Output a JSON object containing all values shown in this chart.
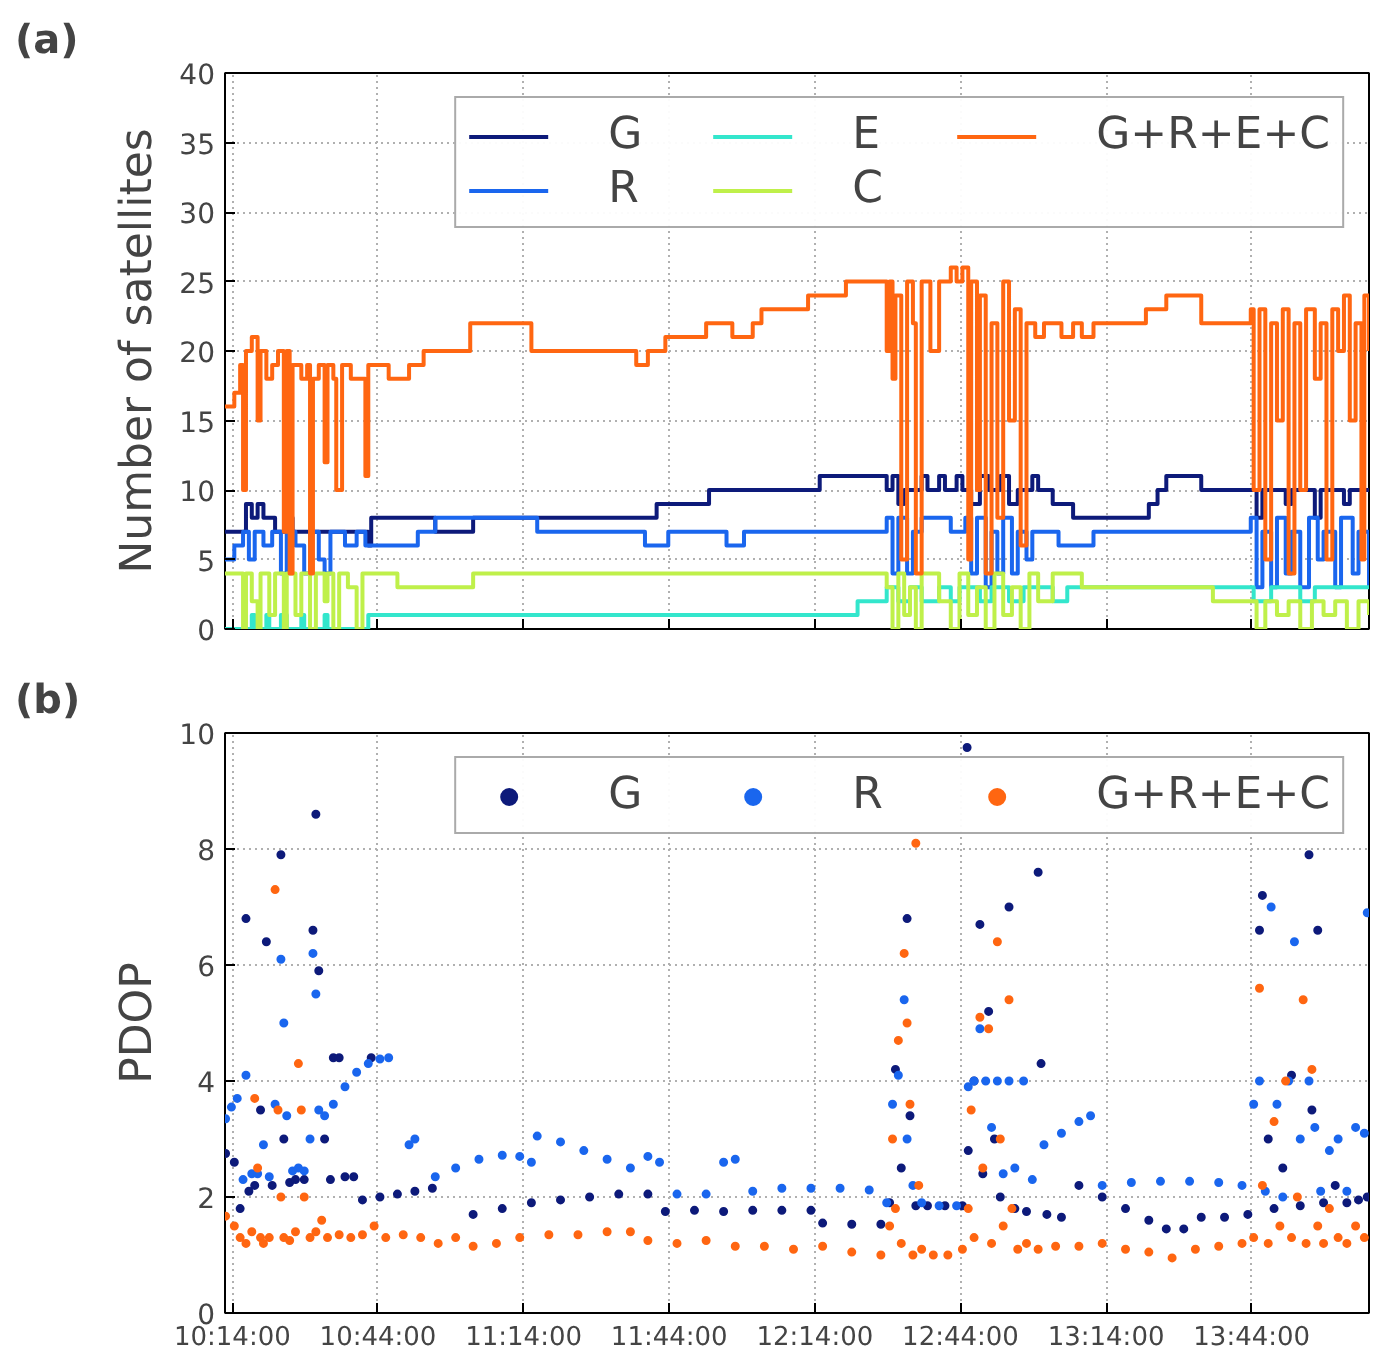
{
  "chart_data": [
    {
      "type": "step",
      "title": "(a)",
      "ylabel": "Number of satellites",
      "xlim": [
        10.208,
        14.136
      ],
      "ylim": [
        0,
        40
      ],
      "yticks": [
        0,
        5,
        10,
        15,
        20,
        25,
        30,
        35,
        40
      ],
      "xticks": [
        10.23333,
        10.73333,
        11.23333,
        11.73333,
        12.23333,
        12.73333,
        13.23333,
        13.73333
      ],
      "tick_labels": "y",
      "grid": true,
      "legend": "top right",
      "line_style": "solid",
      "series": [
        {
          "name": "G",
          "color": "#0d1a7a",
          "x": [
            10.208,
            10.28,
            10.3,
            10.32,
            10.34,
            10.38,
            10.42,
            10.44,
            10.7,
            10.71,
            10.93,
            11.06,
            11.69,
            11.87,
            12.25,
            12.48,
            12.5,
            12.52,
            12.54,
            12.6,
            12.62,
            12.66,
            12.68,
            12.72,
            12.74,
            12.77,
            12.8,
            12.83,
            12.87,
            12.9,
            12.93,
            12.98,
            13.0,
            13.05,
            13.12,
            13.38,
            13.41,
            13.44,
            13.56,
            13.73,
            13.75,
            13.77,
            13.85,
            13.87,
            13.95,
            13.97,
            14.05,
            14.07,
            14.136
          ],
          "values": [
            7,
            9,
            8,
            9,
            8,
            7,
            8,
            7,
            6,
            8,
            7,
            8,
            9,
            10,
            11,
            10,
            11,
            9,
            10,
            11,
            10,
            11,
            10,
            11,
            10,
            9,
            11,
            10,
            11,
            9,
            10,
            11,
            10,
            9,
            8,
            9,
            10,
            11,
            10,
            10,
            8,
            10,
            9,
            10,
            8,
            10,
            9,
            10,
            10
          ]
        },
        {
          "name": "R",
          "color": "#1a66ee",
          "x": [
            10.208,
            10.24,
            10.27,
            10.29,
            10.31,
            10.34,
            10.37,
            10.4,
            10.42,
            10.45,
            10.48,
            10.5,
            10.53,
            10.55,
            10.57,
            10.62,
            10.66,
            10.69,
            10.87,
            10.93,
            11.28,
            11.65,
            11.73,
            11.93,
            11.99,
            12.48,
            12.5,
            12.52,
            12.55,
            12.57,
            12.6,
            12.7,
            12.75,
            12.77,
            12.79,
            12.82,
            12.84,
            12.86,
            12.88,
            12.91,
            12.93,
            12.96,
            12.98,
            13.07,
            13.19,
            13.73,
            13.75,
            13.77,
            13.8,
            13.82,
            13.85,
            13.87,
            13.9,
            13.93,
            13.96,
            13.98,
            14.02,
            14.04,
            14.08,
            14.1,
            14.136
          ],
          "values": [
            5,
            6,
            7,
            5,
            7,
            6,
            7,
            4,
            7,
            6,
            4,
            7,
            5,
            4,
            7,
            6,
            7,
            6,
            7,
            8,
            7,
            6,
            7,
            6,
            7,
            8,
            4,
            8,
            4,
            7,
            8,
            7,
            8,
            4,
            8,
            3,
            7,
            4,
            8,
            4,
            7,
            5,
            7,
            6,
            7,
            8,
            3,
            7,
            3,
            8,
            4,
            7,
            3,
            8,
            5,
            7,
            3,
            8,
            4,
            7,
            3
          ]
        },
        {
          "name": "E",
          "color": "#33e6cc",
          "x": [
            10.208,
            10.3,
            10.31,
            10.35,
            10.36,
            10.4,
            10.42,
            10.47,
            10.48,
            10.55,
            10.56,
            10.7,
            12.38,
            12.48,
            12.52,
            12.56,
            12.6,
            12.66,
            12.7,
            12.73,
            12.8,
            12.84,
            12.9,
            12.95,
            13.05,
            13.1,
            13.74,
            13.8,
            13.9,
            13.95,
            14.136
          ],
          "values": [
            0,
            1,
            0,
            1,
            0,
            1,
            0,
            1,
            0,
            1,
            0,
            1,
            2,
            3,
            2,
            3,
            2,
            3,
            2,
            3,
            2,
            3,
            2,
            3,
            2,
            3,
            2,
            3,
            2,
            3,
            3
          ]
        },
        {
          "name": "C",
          "color": "#bff04a",
          "x": [
            10.208,
            10.27,
            10.28,
            10.3,
            10.32,
            10.33,
            10.36,
            10.38,
            10.41,
            10.42,
            10.45,
            10.47,
            10.5,
            10.52,
            10.55,
            10.56,
            10.58,
            10.6,
            10.63,
            10.66,
            10.68,
            10.8,
            11.06,
            12.48,
            12.5,
            12.52,
            12.54,
            12.56,
            12.58,
            12.6,
            12.66,
            12.7,
            12.73,
            12.76,
            12.79,
            12.82,
            12.85,
            12.88,
            12.91,
            12.94,
            12.97,
            13.0,
            13.05,
            13.15,
            13.6,
            13.75,
            13.78,
            13.82,
            13.86,
            13.9,
            13.94,
            13.98,
            14.02,
            14.06,
            14.1,
            14.136
          ],
          "values": [
            4,
            0,
            4,
            2,
            0,
            4,
            1,
            4,
            0,
            4,
            1,
            4,
            0,
            4,
            2,
            4,
            0,
            4,
            3,
            0,
            4,
            3,
            4,
            3,
            0,
            4,
            1,
            3,
            0,
            4,
            2,
            0,
            4,
            1,
            3,
            0,
            4,
            1,
            3,
            0,
            4,
            2,
            4,
            3,
            2,
            0,
            2,
            1,
            2,
            0,
            2,
            1,
            2,
            0,
            2,
            1
          ]
        },
        {
          "name": "G+R+E+C",
          "color": "#ff6611",
          "x": [
            10.208,
            10.24,
            10.26,
            10.27,
            10.28,
            10.3,
            10.32,
            10.33,
            10.35,
            10.37,
            10.39,
            10.41,
            10.42,
            10.43,
            10.44,
            10.47,
            10.49,
            10.5,
            10.51,
            10.53,
            10.55,
            10.56,
            10.58,
            10.59,
            10.61,
            10.64,
            10.69,
            10.7,
            10.77,
            10.84,
            10.89,
            11.05,
            11.26,
            11.62,
            11.66,
            11.72,
            11.86,
            11.95,
            12.02,
            12.05,
            12.21,
            12.34,
            12.48,
            12.49,
            12.5,
            12.51,
            12.53,
            12.55,
            12.57,
            12.58,
            12.6,
            12.63,
            12.66,
            12.7,
            12.72,
            12.74,
            12.76,
            12.77,
            12.79,
            12.8,
            12.82,
            12.84,
            12.86,
            12.88,
            12.9,
            12.92,
            12.94,
            12.96,
            12.99,
            13.02,
            13.08,
            13.12,
            13.15,
            13.19,
            13.37,
            13.44,
            13.56,
            13.73,
            13.74,
            13.76,
            13.78,
            13.8,
            13.82,
            13.84,
            13.86,
            13.88,
            13.9,
            13.92,
            13.95,
            13.97,
            13.99,
            14.01,
            14.03,
            14.05,
            14.07,
            14.09,
            14.11,
            14.12,
            14.136
          ],
          "values": [
            16,
            17,
            19,
            10,
            20,
            21,
            15,
            20,
            18,
            19,
            20,
            7,
            20,
            4,
            19,
            18,
            19,
            4,
            18,
            19,
            12,
            19,
            18,
            10,
            19,
            18,
            11,
            19,
            18,
            19,
            20,
            22,
            20,
            19,
            20,
            21,
            22,
            21,
            22,
            23,
            24,
            25,
            20,
            25,
            18,
            24,
            5,
            25,
            22,
            4,
            25,
            20,
            25,
            26,
            25,
            26,
            5,
            25,
            10,
            24,
            4,
            22,
            8,
            25,
            15,
            23,
            6,
            22,
            21,
            22,
            21,
            22,
            21,
            22,
            23,
            24,
            22,
            23,
            10,
            23,
            5,
            22,
            15,
            23,
            4,
            22,
            10,
            23,
            18,
            22,
            5,
            23,
            20,
            24,
            15,
            22,
            5,
            24,
            20
          ]
        }
      ]
    },
    {
      "type": "scatter",
      "title": "(b)",
      "ylabel": "PDOP",
      "xlim": [
        10.208,
        14.136
      ],
      "ylim": [
        0,
        10
      ],
      "yticks": [
        0,
        2,
        4,
        6,
        8,
        10
      ],
      "xticks": [
        {
          "value": 10.23333,
          "label": "10:14:00"
        },
        {
          "value": 10.73333,
          "label": "10:44:00"
        },
        {
          "value": 11.23333,
          "label": "11:14:00"
        },
        {
          "value": 11.73333,
          "label": "11:44:00"
        },
        {
          "value": 12.23333,
          "label": "12:14:00"
        },
        {
          "value": 12.73333,
          "label": "12:44:00"
        },
        {
          "value": 13.23333,
          "label": "13:14:00"
        },
        {
          "value": 13.73333,
          "label": "13:44:00"
        }
      ],
      "grid": true,
      "legend": "top right",
      "marker": "circle",
      "series": [
        {
          "name": "G",
          "color": "#0d1a7a",
          "x": [
            10.21,
            10.24,
            10.26,
            10.28,
            10.29,
            10.31,
            10.33,
            10.35,
            10.37,
            10.4,
            10.41,
            10.43,
            10.45,
            10.48,
            10.51,
            10.52,
            10.53,
            10.55,
            10.57,
            10.58,
            10.6,
            10.62,
            10.65,
            10.68,
            10.71,
            10.74,
            10.8,
            10.86,
            10.92,
            11.06,
            11.16,
            11.26,
            11.36,
            11.46,
            11.56,
            11.66,
            11.72,
            11.82,
            11.92,
            12.02,
            12.12,
            12.22,
            12.26,
            12.36,
            12.46,
            12.49,
            12.51,
            12.53,
            12.55,
            12.56,
            12.58,
            12.62,
            12.68,
            12.74,
            12.756,
            12.76,
            12.78,
            12.8,
            12.81,
            12.83,
            12.85,
            12.87,
            12.9,
            12.92,
            12.96,
            13.0,
            13.01,
            13.03,
            13.08,
            13.14,
            13.22,
            13.3,
            13.38,
            13.44,
            13.5,
            13.56,
            13.64,
            13.72,
            13.76,
            13.77,
            13.79,
            13.81,
            13.84,
            13.87,
            13.9,
            13.93,
            13.94,
            13.96,
            13.98,
            14.02,
            14.06,
            14.1,
            14.13
          ],
          "values": [
            2.75,
            2.6,
            1.8,
            6.8,
            2.1,
            2.2,
            3.5,
            6.4,
            2.2,
            7.9,
            3.0,
            2.25,
            2.3,
            2.3,
            6.6,
            8.6,
            5.9,
            3.0,
            2.3,
            4.4,
            4.4,
            2.35,
            2.35,
            1.95,
            4.4,
            2.0,
            2.05,
            2.1,
            2.15,
            1.7,
            1.8,
            1.9,
            1.95,
            2.0,
            2.05,
            2.05,
            1.75,
            1.77,
            1.75,
            1.77,
            1.77,
            1.77,
            1.55,
            1.53,
            1.53,
            1.9,
            4.2,
            2.5,
            6.8,
            3.4,
            1.85,
            1.85,
            1.85,
            1.85,
            9.75,
            2.8,
            4.0,
            6.7,
            2.4,
            5.2,
            3.0,
            2.0,
            7.0,
            1.8,
            1.75,
            7.6,
            4.3,
            1.7,
            1.65,
            2.2,
            2.0,
            1.8,
            1.6,
            1.45,
            1.45,
            1.65,
            1.65,
            1.7,
            6.6,
            7.2,
            3.0,
            1.8,
            2.5,
            4.1,
            1.85,
            7.9,
            3.5,
            6.6,
            1.9,
            2.2,
            1.9,
            1.95,
            2.0
          ]
        },
        {
          "name": "R",
          "color": "#1a66ee",
          "x": [
            10.21,
            10.23,
            10.25,
            10.27,
            10.28,
            10.3,
            10.32,
            10.34,
            10.36,
            10.38,
            10.4,
            10.41,
            10.42,
            10.44,
            10.46,
            10.48,
            10.5,
            10.51,
            10.52,
            10.53,
            10.55,
            10.58,
            10.62,
            10.66,
            10.7,
            10.74,
            10.77,
            10.84,
            10.86,
            10.93,
            11.0,
            11.08,
            11.16,
            11.22,
            11.26,
            11.28,
            11.36,
            11.44,
            11.52,
            11.6,
            11.66,
            11.7,
            11.76,
            11.86,
            11.92,
            11.96,
            12.02,
            12.12,
            12.22,
            12.32,
            12.42,
            12.48,
            12.5,
            12.52,
            12.54,
            12.55,
            12.57,
            12.6,
            12.66,
            12.72,
            12.76,
            12.78,
            12.8,
            12.82,
            12.84,
            12.86,
            12.88,
            12.9,
            12.92,
            12.95,
            12.98,
            13.02,
            13.08,
            13.14,
            13.18,
            13.22,
            13.32,
            13.42,
            13.52,
            13.62,
            13.7,
            13.74,
            13.76,
            13.78,
            13.8,
            13.82,
            13.84,
            13.86,
            13.88,
            13.9,
            13.93,
            13.95,
            13.97,
            14.0,
            14.03,
            14.06,
            14.09,
            14.12,
            14.13
          ],
          "values": [
            3.35,
            3.55,
            3.7,
            2.3,
            4.1,
            2.4,
            2.4,
            2.9,
            2.35,
            3.6,
            6.1,
            5.0,
            3.4,
            2.45,
            2.5,
            2.45,
            3.0,
            6.2,
            5.5,
            3.5,
            3.4,
            3.6,
            3.9,
            4.15,
            4.3,
            4.38,
            4.4,
            2.9,
            3.0,
            2.35,
            2.5,
            2.65,
            2.72,
            2.7,
            2.6,
            3.05,
            2.95,
            2.8,
            2.65,
            2.5,
            2.7,
            2.6,
            2.05,
            2.05,
            2.6,
            2.65,
            2.1,
            2.15,
            2.15,
            2.15,
            2.12,
            1.9,
            3.6,
            4.1,
            5.4,
            3.0,
            2.2,
            1.9,
            1.85,
            1.85,
            3.9,
            4.0,
            4.9,
            4.0,
            3.2,
            4.0,
            2.4,
            4.0,
            2.5,
            4.0,
            2.3,
            2.9,
            3.1,
            3.3,
            3.4,
            2.2,
            2.25,
            2.27,
            2.27,
            2.25,
            2.2,
            3.6,
            4.0,
            2.1,
            7.0,
            3.6,
            2.0,
            4.0,
            6.4,
            3.0,
            4.0,
            3.2,
            2.1,
            2.8,
            3.0,
            2.1,
            3.2,
            3.1,
            6.9
          ]
        },
        {
          "name": "G+R+E+C",
          "color": "#ff6611",
          "x": [
            10.21,
            10.24,
            10.26,
            10.28,
            10.3,
            10.31,
            10.32,
            10.33,
            10.34,
            10.36,
            10.38,
            10.39,
            10.4,
            10.41,
            10.43,
            10.45,
            10.46,
            10.47,
            10.48,
            10.5,
            10.52,
            10.54,
            10.56,
            10.6,
            10.64,
            10.68,
            10.72,
            10.76,
            10.82,
            10.88,
            10.94,
            11.0,
            11.06,
            11.14,
            11.22,
            11.32,
            11.42,
            11.52,
            11.6,
            11.66,
            11.76,
            11.86,
            11.96,
            12.06,
            12.16,
            12.26,
            12.36,
            12.46,
            12.49,
            12.5,
            12.51,
            12.52,
            12.53,
            12.54,
            12.55,
            12.56,
            12.57,
            12.58,
            12.59,
            12.6,
            12.64,
            12.69,
            12.74,
            12.76,
            12.77,
            12.78,
            12.8,
            12.81,
            12.83,
            12.84,
            12.86,
            12.87,
            12.88,
            12.9,
            12.91,
            12.93,
            12.96,
            13.0,
            13.06,
            13.14,
            13.22,
            13.3,
            13.38,
            13.46,
            13.54,
            13.62,
            13.7,
            13.74,
            13.76,
            13.77,
            13.79,
            13.81,
            13.83,
            13.85,
            13.87,
            13.89,
            13.91,
            13.92,
            13.94,
            13.96,
            13.98,
            14.0,
            14.03,
            14.06,
            14.09,
            14.12
          ],
          "values": [
            1.67,
            1.5,
            1.3,
            1.2,
            1.4,
            3.7,
            2.5,
            1.3,
            1.2,
            1.3,
            7.3,
            3.5,
            2.0,
            1.3,
            1.25,
            1.4,
            4.3,
            3.5,
            2.0,
            1.3,
            1.4,
            1.6,
            1.3,
            1.35,
            1.3,
            1.35,
            1.5,
            1.3,
            1.35,
            1.3,
            1.2,
            1.3,
            1.15,
            1.2,
            1.3,
            1.35,
            1.35,
            1.4,
            1.4,
            1.25,
            1.2,
            1.25,
            1.15,
            1.15,
            1.1,
            1.15,
            1.05,
            1.0,
            1.5,
            3.0,
            1.8,
            4.7,
            1.2,
            6.2,
            5.0,
            3.6,
            1.0,
            8.1,
            2.2,
            1.1,
            1.0,
            1.0,
            1.1,
            1.8,
            3.5,
            1.3,
            5.1,
            2.5,
            4.9,
            1.2,
            6.4,
            3.0,
            1.5,
            5.4,
            1.8,
            1.1,
            1.2,
            1.1,
            1.15,
            1.15,
            1.2,
            1.1,
            1.05,
            0.95,
            1.1,
            1.15,
            1.2,
            1.3,
            5.6,
            2.2,
            1.2,
            3.3,
            1.5,
            4.0,
            1.3,
            2.0,
            5.4,
            1.2,
            4.2,
            1.5,
            1.2,
            1.8,
            1.3,
            1.2,
            1.5,
            1.3
          ]
        }
      ]
    }
  ]
}
